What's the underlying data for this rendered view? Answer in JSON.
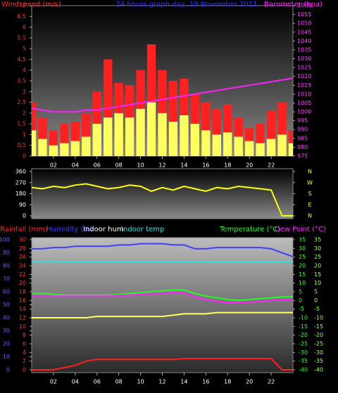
{
  "chart_data": [
    {
      "type": "bar",
      "title": "24 hours graph day, 19 November 2011",
      "y_label": "Windspeed (m/s)",
      "x": [
        0,
        1,
        2,
        3,
        4,
        5,
        6,
        7,
        8,
        9,
        10,
        11,
        12,
        13,
        14,
        15,
        16,
        17,
        18,
        19,
        20,
        21,
        22,
        23,
        24
      ],
      "xlim": [
        0,
        24
      ],
      "xticks": [
        {
          "value": 2,
          "label": "02"
        },
        {
          "value": 4,
          "label": "04"
        },
        {
          "value": 6,
          "label": "06"
        },
        {
          "value": 8,
          "label": "08"
        },
        {
          "value": 10,
          "label": "10"
        },
        {
          "value": 12,
          "label": "12"
        },
        {
          "value": 14,
          "label": "14"
        },
        {
          "value": 16,
          "label": "16"
        },
        {
          "value": 18,
          "label": "18"
        },
        {
          "value": 20,
          "label": "20"
        },
        {
          "value": 22,
          "label": "22"
        }
      ],
      "ylim": [
        0,
        7
      ],
      "yticks": [
        0,
        0.5,
        1,
        1.5,
        2,
        2.5,
        3,
        3.5,
        4,
        4.5,
        5,
        5.5,
        6,
        6.5,
        7
      ],
      "y2lim": [
        975,
        1060
      ],
      "y2ticks": [
        975,
        980,
        985,
        990,
        995,
        1000,
        1005,
        1010,
        1015,
        1020,
        1025,
        1030,
        1035,
        1040,
        1045,
        1050,
        1055,
        1060
      ],
      "series": [
        {
          "color": "#ff2020",
          "type": "bar",
          "values": [
            2.5,
            1.8,
            1.2,
            1.5,
            1.6,
            2.0,
            3.0,
            4.5,
            3.4,
            3.3,
            4.0,
            5.2,
            4.0,
            3.5,
            3.6,
            2.9,
            2.5,
            2.2,
            2.4,
            1.8,
            1.3,
            1.5,
            2.1,
            2.5,
            1.2
          ]
        },
        {
          "color": "#ffff60",
          "type": "bar",
          "values": [
            1.2,
            0.8,
            0.5,
            0.6,
            0.7,
            0.9,
            1.5,
            1.8,
            2.0,
            1.8,
            2.2,
            2.5,
            2.0,
            1.6,
            1.9,
            1.5,
            1.2,
            1.0,
            1.1,
            0.9,
            0.7,
            0.6,
            0.8,
            1.0,
            0.6
          ]
        },
        {
          "name": "Barometer (hpa)",
          "color": "#ff20ff",
          "type": "line",
          "axis": "y2",
          "values": [
            1002,
            1001,
            1000,
            1000,
            1000,
            1001,
            1001,
            1002,
            1003,
            1004,
            1005,
            1006,
            1007,
            1008,
            1009,
            1010,
            1011,
            1012,
            1013,
            1014,
            1015,
            1016,
            1017,
            1018,
            1019
          ]
        }
      ]
    },
    {
      "type": "line",
      "x": [
        0,
        1,
        2,
        3,
        4,
        5,
        6,
        7,
        8,
        9,
        10,
        11,
        12,
        13,
        14,
        15,
        16,
        17,
        18,
        19,
        20,
        21,
        22,
        23,
        24
      ],
      "xlim": [
        0,
        24
      ],
      "ylim": [
        0,
        360
      ],
      "yticks": [
        0,
        90,
        180,
        270,
        360
      ],
      "y2lim": [
        0,
        360
      ],
      "y2ticks": [
        {
          "value": 360,
          "label": "N"
        },
        {
          "value": 270,
          "label": "W"
        },
        {
          "value": 180,
          "label": "S"
        },
        {
          "value": 90,
          "label": "E"
        },
        {
          "value": 0,
          "label": "N"
        }
      ],
      "series": [
        {
          "color": "#ffff00",
          "type": "line",
          "values": [
            230,
            220,
            240,
            230,
            250,
            260,
            240,
            220,
            230,
            250,
            240,
            200,
            230,
            210,
            240,
            220,
            200,
            230,
            220,
            240,
            230,
            220,
            210,
            0,
            0
          ]
        }
      ]
    },
    {
      "type": "line",
      "x": [
        0,
        1,
        2,
        3,
        4,
        5,
        6,
        7,
        8,
        9,
        10,
        11,
        12,
        13,
        14,
        15,
        16,
        17,
        18,
        19,
        20,
        21,
        22,
        23,
        24
      ],
      "xlim": [
        0,
        24
      ],
      "xticks": [
        {
          "value": 2,
          "label": "02"
        },
        {
          "value": 4,
          "label": "04"
        },
        {
          "value": 6,
          "label": "06"
        },
        {
          "value": 8,
          "label": "08"
        },
        {
          "value": 10,
          "label": "10"
        },
        {
          "value": 12,
          "label": "12"
        },
        {
          "value": 14,
          "label": "14"
        },
        {
          "value": 16,
          "label": "16"
        },
        {
          "value": 18,
          "label": "18"
        },
        {
          "value": 20,
          "label": "20"
        },
        {
          "value": 22,
          "label": "22"
        }
      ],
      "ylim": [
        0,
        100
      ],
      "yticks": [
        0,
        10,
        20,
        30,
        40,
        50,
        60,
        70,
        80,
        90,
        100
      ],
      "y3lim": [
        0,
        30
      ],
      "y3ticks": [
        0,
        2,
        4,
        6,
        8,
        10,
        12,
        14,
        16,
        18,
        20,
        22,
        24,
        26,
        28,
        30
      ],
      "y2lim": [
        -40,
        35
      ],
      "y2ticks": [
        -40,
        -35,
        -30,
        -25,
        -20,
        -15,
        -10,
        -5,
        0,
        5,
        10,
        15,
        20,
        25,
        30,
        35
      ],
      "series": [
        {
          "name": "Rainfall (mm)",
          "color": "#ff2020",
          "type": "line",
          "axis": "y3",
          "values": [
            0,
            0,
            0,
            0.5,
            1,
            2,
            2.4,
            2.4,
            2.4,
            2.4,
            2.4,
            2.4,
            2.4,
            2.4,
            2.6,
            2.6,
            2.6,
            2.6,
            2.6,
            2.6,
            2.6,
            2.6,
            2.6,
            0,
            0
          ]
        },
        {
          "name": "Humidity (%)",
          "color": "#4040ff",
          "type": "line",
          "values": [
            93,
            93,
            94,
            94,
            95,
            95,
            95,
            95,
            96,
            96,
            97,
            97,
            97,
            96,
            96,
            93,
            93,
            94,
            94,
            94,
            94,
            94,
            93,
            90,
            87
          ]
        },
        {
          "name": "Indoor hum",
          "color": "#ffff60",
          "type": "line",
          "values": [
            40,
            40,
            40,
            40,
            40,
            40,
            41,
            41,
            41,
            41,
            41,
            41,
            41,
            42,
            43,
            43,
            43,
            44,
            44,
            44,
            44,
            44,
            44,
            44,
            44
          ]
        },
        {
          "name": "Indoor temp",
          "color": "#30e0e0",
          "type": "line",
          "axis": "y2",
          "values": [
            22.5,
            22.5,
            22.5,
            22.4,
            22.4,
            22.4,
            22.4,
            22.4,
            22.4,
            22.4,
            22.4,
            22.4,
            22.4,
            22.4,
            22.4,
            22.4,
            22.3,
            22.3,
            22.3,
            22.3,
            22.3,
            22.3,
            22.3,
            22.3,
            22.3
          ]
        },
        {
          "name": "Temperature (°C)",
          "color": "#20ff20",
          "type": "line",
          "axis": "y2",
          "values": [
            4,
            4,
            3.5,
            3,
            3,
            3,
            3,
            3,
            3.5,
            4,
            4.5,
            5,
            5.5,
            6,
            6,
            4,
            2.5,
            1.5,
            0.5,
            0,
            0.5,
            1,
            1.5,
            2,
            2
          ]
        },
        {
          "name": "Dew Point (°C)",
          "color": "#ff20ff",
          "type": "line",
          "axis": "y2",
          "values": [
            2.5,
            2.5,
            2.5,
            2.5,
            2.5,
            2.5,
            2.5,
            2.5,
            3,
            3,
            3.5,
            4,
            4,
            4.5,
            4.5,
            2,
            0.5,
            -0.5,
            -1.5,
            -1.5,
            -1,
            -0.5,
            0,
            0.5,
            0.5
          ]
        }
      ]
    }
  ]
}
